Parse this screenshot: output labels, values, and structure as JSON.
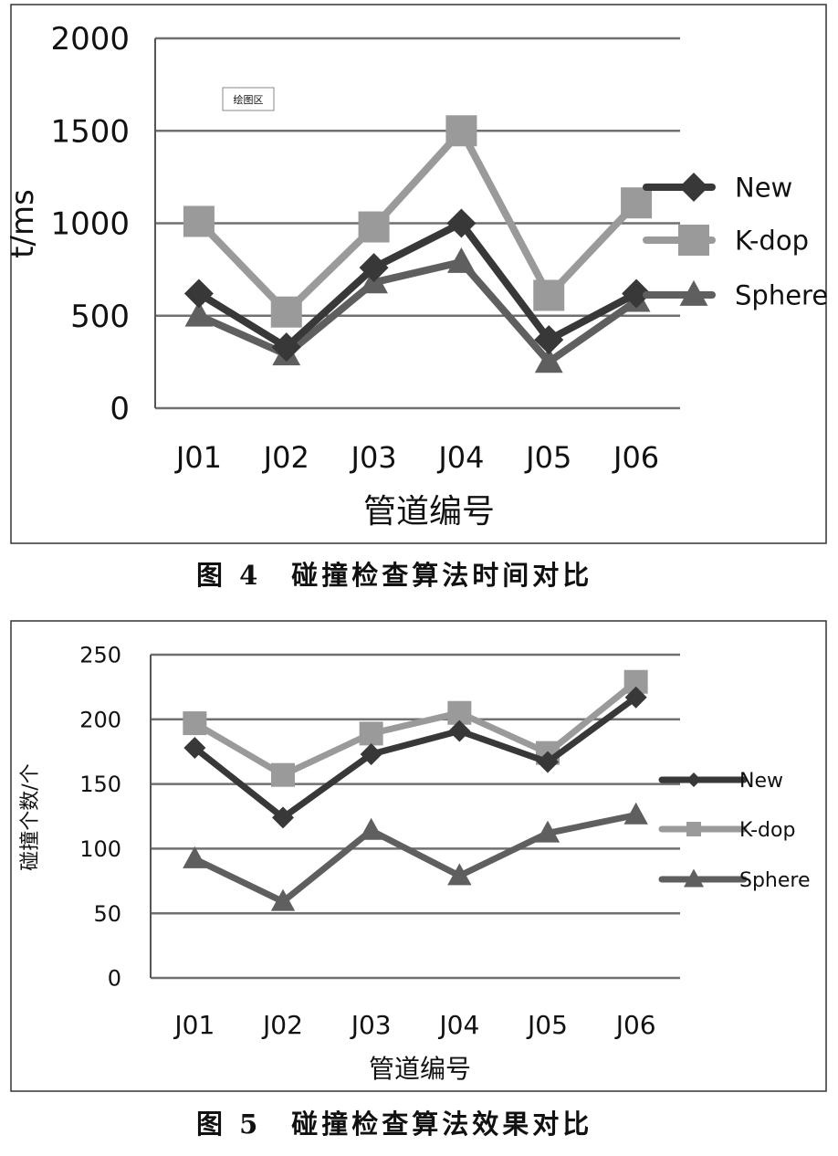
{
  "colors": {
    "New": "#383838",
    "K-dop": "#9a9a9a",
    "Sphere": "#5f5f5f",
    "grid": "#707070"
  },
  "chart_data": [
    {
      "type": "line",
      "caption": "图 4　碰撞检查算法时间对比",
      "annotation": "绘图区",
      "xlabel": "管道编号",
      "ylabel": "t/ms",
      "categories": [
        "J01",
        "J02",
        "J03",
        "J04",
        "J05",
        "J06"
      ],
      "ylim": [
        0,
        2000
      ],
      "yticks": [
        0,
        500,
        1000,
        1500,
        2000
      ],
      "grid": true,
      "legend": "right",
      "series": [
        {
          "name": "New",
          "marker": "diamond",
          "values": [
            620,
            330,
            760,
            1000,
            370,
            620
          ]
        },
        {
          "name": "K-dop",
          "marker": "square",
          "values": [
            1010,
            520,
            980,
            1500,
            610,
            1110
          ]
        },
        {
          "name": "Sphere",
          "marker": "triangle",
          "values": [
            500,
            290,
            680,
            790,
            250,
            580
          ]
        }
      ]
    },
    {
      "type": "line",
      "caption": "图 5　碰撞检查算法效果对比",
      "xlabel": "管道编号",
      "ylabel": "碰撞个数/个",
      "categories": [
        "J01",
        "J02",
        "J03",
        "J04",
        "J05",
        "J06"
      ],
      "ylim": [
        0,
        250
      ],
      "yticks": [
        0,
        50,
        100,
        150,
        200,
        250
      ],
      "grid": true,
      "legend": "right",
      "series": [
        {
          "name": "New",
          "marker": "diamond",
          "values": [
            178,
            124,
            173,
            191,
            167,
            217
          ]
        },
        {
          "name": "K-dop",
          "marker": "square",
          "values": [
            197,
            157,
            189,
            205,
            174,
            229
          ]
        },
        {
          "name": "Sphere",
          "marker": "triangle",
          "values": [
            92,
            59,
            114,
            79,
            112,
            126
          ]
        }
      ]
    }
  ]
}
